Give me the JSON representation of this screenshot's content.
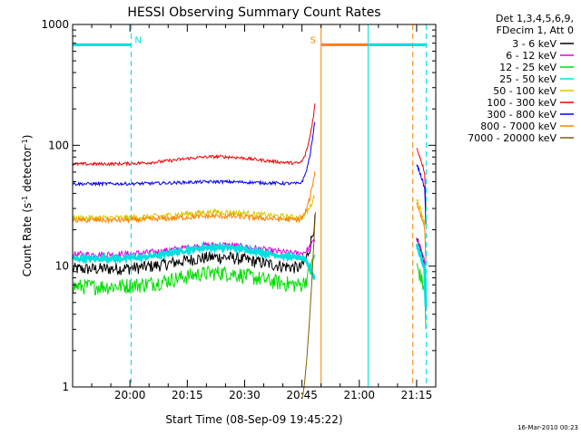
{
  "chart_data": {
    "type": "line",
    "title": "HESSI Observing Summary Count Rates",
    "xlabel": "Start Time (08-Sep-09 19:45:22)",
    "ylabel_main": "Count Rate (s",
    "ylabel_sup1": "-1",
    "ylabel_mid": " detector",
    "ylabel_sup2": "-1",
    "ylabel_end": ")",
    "yscale": "log",
    "ylim": [
      1,
      1000
    ],
    "xlim_min": [
      0,
      95
    ],
    "y_ticks": [
      {
        "value": 1,
        "label": "1"
      },
      {
        "value": 10,
        "label": "10"
      },
      {
        "value": 100,
        "label": "100"
      },
      {
        "value": 1000,
        "label": "1000"
      }
    ],
    "x_ticks": [
      {
        "value": 15,
        "label": "20:00"
      },
      {
        "value": 30,
        "label": "20:15"
      },
      {
        "value": 45,
        "label": "20:30"
      },
      {
        "value": 60,
        "label": "20:45"
      },
      {
        "value": 75,
        "label": "21:00"
      },
      {
        "value": 90,
        "label": "21:15"
      }
    ],
    "legend_header": [
      "Det 1,3,4,5,6,9,",
      "FDecim 1, Att 0"
    ],
    "series": [
      {
        "name": "3 - 6 keV",
        "color": "#000000",
        "base": 9.5,
        "bump": 1.25,
        "noise": 0.12,
        "end": 16
      },
      {
        "name": "6 - 12 keV",
        "color": "#dd00dd",
        "base": 12.5,
        "bump": 1.2,
        "noise": 0.06,
        "end": 17
      },
      {
        "name": "12 - 25 keV",
        "color": "#00dd00",
        "base": 6.8,
        "bump": 1.3,
        "noise": 0.15,
        "end": 10
      },
      {
        "name": "25 - 50 keV",
        "color": "#00e0e0",
        "base": 11.5,
        "bump": 1.25,
        "noise": 0.04,
        "end": 15
      },
      {
        "name": "50 - 100 keV",
        "color": "#d8c800",
        "base": 25,
        "bump": 1.12,
        "noise": 0.06,
        "end": 36
      },
      {
        "name": "100 - 300 keV",
        "color": "#ee0000",
        "base": 70,
        "bump": 1.15,
        "noise": 0.03,
        "end": 95
      },
      {
        "name": "300 - 800 keV",
        "color": "#0000ee",
        "base": 48,
        "bump": 1.04,
        "noise": 0.03,
        "end": 70
      },
      {
        "name": "800 - 7000 keV",
        "color": "#ff8000",
        "base": 24,
        "bump": 1.08,
        "noise": 0.05,
        "end": 33
      },
      {
        "name": "7000 - 20000 keV",
        "color": "#806000",
        "base": 0.8,
        "bump": 1.0,
        "noise": 0.0,
        "end": 0.8
      }
    ],
    "spike_peaks": [
      25,
      17,
      13,
      7.5,
      40,
      230,
      170,
      65,
      28
    ],
    "intervals": [
      {
        "label": "N",
        "color": "#00e0e0",
        "start": 0,
        "end": 15.3,
        "style": "bar-dash"
      },
      {
        "label": "S",
        "color": "#ff8000",
        "start": 65,
        "end": 89,
        "style": "solid-dash"
      },
      {
        "label": "",
        "color": "#00e0e0",
        "start": 77.3,
        "end": 92.5,
        "style": "solid-dash"
      }
    ],
    "interval_bar_value": 680,
    "segments": [
      [
        0,
        63.5
      ],
      [
        90,
        92.5
      ]
    ]
  },
  "footer": {
    "timestamp": "16-Mar-2010 00:23"
  }
}
